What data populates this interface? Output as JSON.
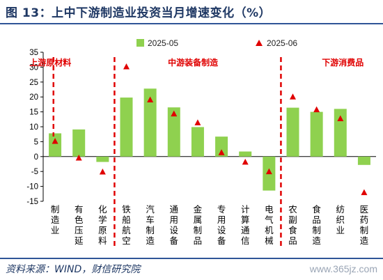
{
  "title": "图 13：上中下游制造业投资当月增速变化（%）",
  "source": "资料来源：WIND，财信研究院",
  "watermark": "www.365jz.com",
  "colors": {
    "bar": "#8fd14f",
    "marker": "#e00000",
    "divider": "#e00000",
    "section_label": "#e00000",
    "title": "#1f3864",
    "rule": "#2f5597"
  },
  "chart_data": {
    "type": "bar",
    "legend": {
      "placement": "top",
      "bar_series": "2025-05",
      "marker_series": "2025-06"
    },
    "ylim": [
      -15,
      35
    ],
    "yticks": [
      -15,
      -10,
      -5,
      0,
      5,
      10,
      15,
      20,
      25,
      30,
      35
    ],
    "categories": [
      "制造业",
      "有色压延",
      "化学原料",
      "铁船航空",
      "汽车制造",
      "通用设备",
      "金属制品",
      "专用设备",
      "计算通信",
      "电气机械",
      "农副食品",
      "食品制造",
      "纺织业",
      "医药制造"
    ],
    "series": [
      {
        "name": "2025-05",
        "type": "bar",
        "values": [
          7.8,
          9.1,
          -1.8,
          19.8,
          22.8,
          16.5,
          9.9,
          6.7,
          1.7,
          -11.4,
          16.4,
          15.0,
          16.0,
          -2.8
        ]
      },
      {
        "name": "2025-06",
        "type": "marker",
        "values": [
          5.1,
          -0.5,
          -5.2,
          30.1,
          19.0,
          14.3,
          11.3,
          1.3,
          -1.9,
          -5.1,
          20.0,
          15.7,
          12.7,
          -12.1
        ]
      }
    ],
    "sections": [
      {
        "label": "上游原材料"
      },
      {
        "label": "中游装备制造"
      },
      {
        "label": "下游消费品"
      }
    ]
  }
}
